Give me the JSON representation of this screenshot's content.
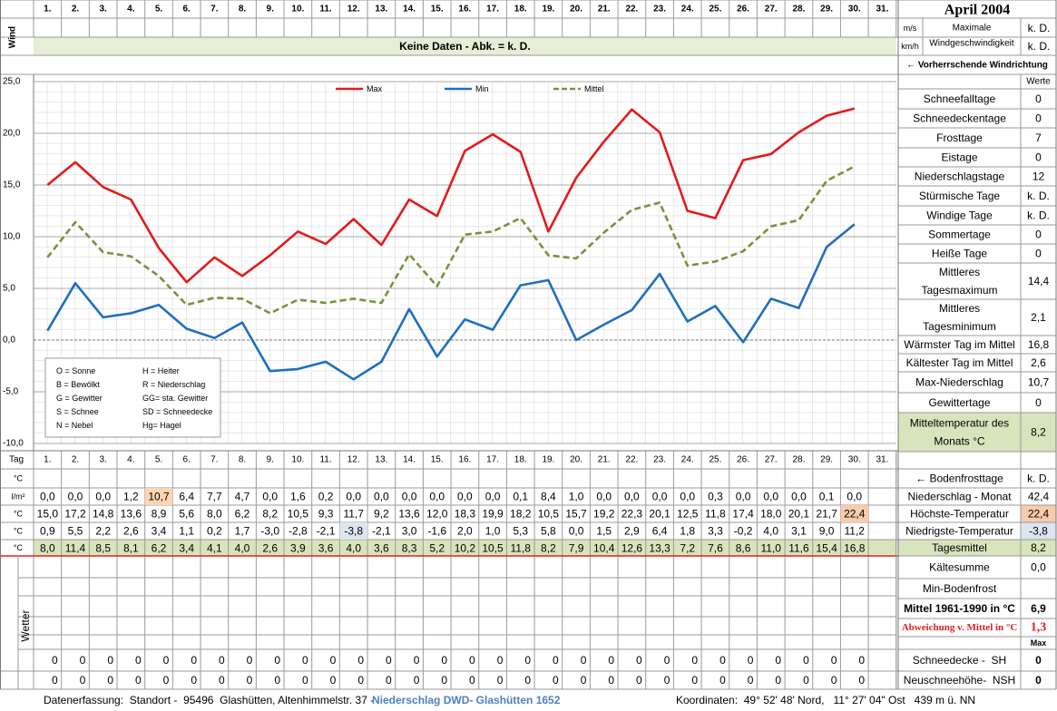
{
  "header": {
    "title": "April 2004"
  },
  "wind": {
    "label": "Wind",
    "units": [
      "m/s",
      "km/h"
    ],
    "caption": [
      "Maximale",
      "Windgeschwindigkeit"
    ],
    "values": [
      "k. D.",
      "k. D."
    ],
    "note": "Keine Daten - Abk. = k. D.",
    "direction": "← Vorherrschende Windrichtung"
  },
  "chart_data": {
    "type": "line",
    "ylim": [
      -10,
      25
    ],
    "yticks": [
      {
        "value": 25,
        "label": "25,0"
      },
      {
        "value": 20,
        "label": "20,0"
      },
      {
        "value": 15,
        "label": "15,0"
      },
      {
        "value": 10,
        "label": "10,0"
      },
      {
        "value": 5,
        "label": "5,0"
      },
      {
        "value": 0,
        "label": "0,0"
      },
      {
        "value": -5,
        "label": "-5,0"
      },
      {
        "value": -10,
        "label": "-10,0"
      }
    ],
    "grid": true,
    "series": [
      {
        "name": "Max",
        "color": "#e41a1c",
        "line_style": "solid",
        "values": [
          15.0,
          17.2,
          14.8,
          13.6,
          8.9,
          5.6,
          8.0,
          6.2,
          8.2,
          10.5,
          9.3,
          11.7,
          9.2,
          13.6,
          12.0,
          18.3,
          19.9,
          18.2,
          10.5,
          15.7,
          19.2,
          22.3,
          20.1,
          12.5,
          11.8,
          17.4,
          18.0,
          20.1,
          21.7,
          22.4
        ],
        "value_labels": [
          "15,0",
          "17,2",
          "14,8",
          "13,6",
          "8,9",
          "5,6",
          "8,0",
          "6,2",
          "8,2",
          "10,5",
          "9,3",
          "11,7",
          "9,2",
          "13,6",
          "12,0",
          "18,3",
          "19,9",
          "18,2",
          "10,5",
          "15,7",
          "19,2",
          "22,3",
          "20,1",
          "12,5",
          "11,8",
          "17,4",
          "18,0",
          "20,1",
          "21,7",
          "22,4"
        ]
      },
      {
        "name": "Min",
        "color": "#1f6fbe",
        "line_style": "solid",
        "values": [
          0.9,
          5.5,
          2.2,
          2.6,
          3.4,
          1.1,
          0.2,
          1.7,
          -3.0,
          -2.8,
          -2.1,
          -3.8,
          -2.1,
          3.0,
          -1.6,
          2.0,
          1.0,
          5.3,
          5.8,
          0.0,
          1.5,
          2.9,
          6.4,
          1.8,
          3.3,
          -0.2,
          4.0,
          3.1,
          9.0,
          11.2
        ],
        "value_labels": [
          "0,9",
          "5,5",
          "2,2",
          "2,6",
          "3,4",
          "1,1",
          "0,2",
          "1,7",
          "-3,0",
          "-2,8",
          "-2,1",
          "-3,8",
          "-2,1",
          "3,0",
          "-1,6",
          "2,0",
          "1,0",
          "5,3",
          "5,8",
          "0,0",
          "1,5",
          "2,9",
          "6,4",
          "1,8",
          "3,3",
          "-0,2",
          "4,0",
          "3,1",
          "9,0",
          "11,2"
        ]
      },
      {
        "name": "Mittel",
        "color": "#77933c",
        "line_style": "dashed",
        "values": [
          8.0,
          11.4,
          8.5,
          8.1,
          6.2,
          3.4,
          4.1,
          4.0,
          2.6,
          3.9,
          3.6,
          4.0,
          3.6,
          8.3,
          5.2,
          10.2,
          10.5,
          11.8,
          8.2,
          7.9,
          10.4,
          12.6,
          13.3,
          7.2,
          7.6,
          8.6,
          11.0,
          11.6,
          15.4,
          16.8
        ],
        "value_labels": [
          "8,0",
          "11,4",
          "8,5",
          "8,1",
          "6,2",
          "3,4",
          "4,1",
          "4,0",
          "2,6",
          "3,9",
          "3,6",
          "4,0",
          "3,6",
          "8,3",
          "5,2",
          "10,2",
          "10,5",
          "11,8",
          "8,2",
          "7,9",
          "10,4",
          "12,6",
          "13,3",
          "7,2",
          "7,6",
          "8,6",
          "11,0",
          "11,6",
          "15,4",
          "16,8"
        ]
      }
    ],
    "weather_legend": [
      "O = Sonne",
      "H = Heiter",
      "B = Bewölkt",
      "R = Niederschlag",
      "G = Gewitter",
      "GG= sta. Gewitter",
      "S = Schnee",
      "SD = Schneedecke",
      "N = Nebel",
      "Hg= Hagel"
    ]
  },
  "table": {
    "days": [
      "1.",
      "2.",
      "3.",
      "4.",
      "5.",
      "6.",
      "7.",
      "8.",
      "9.",
      "10.",
      "11.",
      "12.",
      "13.",
      "14.",
      "15.",
      "16.",
      "17.",
      "18.",
      "19.",
      "20.",
      "21.",
      "22.",
      "23.",
      "24.",
      "25.",
      "26.",
      "27.",
      "28.",
      "29.",
      "30.",
      "31."
    ],
    "row_label": "Tag",
    "units": [
      "°C",
      "l/m²",
      "°C",
      "°C",
      "°C"
    ],
    "precipitation": [
      "0,0",
      "0,0",
      "0,0",
      "1,2",
      "10,7",
      "6,4",
      "7,7",
      "4,7",
      "0,0",
      "1,6",
      "0,2",
      "0,0",
      "0,0",
      "0,0",
      "0,0",
      "0,0",
      "0,0",
      "0,1",
      "8,4",
      "1,0",
      "0,0",
      "0,0",
      "0,0",
      "0,0",
      "0,3",
      "0,0",
      "0,0",
      "0,0",
      "0,1",
      "0,0"
    ],
    "side": [
      {
        "label": "← Bodenfrosttage",
        "value": "k. D."
      },
      {
        "label": "Niederschlag - Monat",
        "value": "42,4"
      },
      {
        "label": "Höchste-Temperatur",
        "value": "22,4"
      },
      {
        "label": "Niedrigste-Temperatur",
        "value": "-3,8"
      },
      {
        "label": "Tagesmittel",
        "value": "8,2"
      }
    ]
  },
  "summary": {
    "header": "Werte",
    "rows": [
      {
        "label": "Schneefalltage",
        "value": "0"
      },
      {
        "label": "Schneedeckentage",
        "value": "0"
      },
      {
        "label": "Frosttage",
        "value": "7"
      },
      {
        "label": "Eistage",
        "value": "0"
      },
      {
        "label": "Niederschlagstage",
        "value": "12"
      },
      {
        "label": "Stürmische Tage",
        "value": "k. D."
      },
      {
        "label": "Windige Tage",
        "value": "k. D."
      },
      {
        "label": "Sommertage",
        "value": "0"
      },
      {
        "label": "Heiße Tage",
        "value": "0"
      },
      {
        "label": [
          "Mittleres",
          "Tagesmaximum"
        ],
        "value": "14,4"
      },
      {
        "label": [
          "Mittleres",
          "Tagesminimum"
        ],
        "value": "2,1"
      },
      {
        "label": "Wärmster Tag im Mittel",
        "value": "16,8"
      },
      {
        "label": "Kältester Tag im Mittel",
        "value": "2,6"
      },
      {
        "label": "Max-Niederschlag",
        "value": "10,7"
      },
      {
        "label": "Gewittertage",
        "value": "0"
      },
      {
        "label": [
          "Mitteltemperatur des",
          "Monats °C"
        ],
        "value": "8,2"
      }
    ]
  },
  "lower": {
    "wetter": "Wetter",
    "rows": [
      {
        "label": "Kältesumme",
        "value": "0,0"
      },
      {
        "label": "Min-Bodenfrost",
        "value": ""
      },
      {
        "label": "Mittel 1961-1990 in °C",
        "value": "6,9"
      },
      {
        "label": "Abweichung v. Mittel in °C",
        "value": "1,3"
      }
    ],
    "max_label": "Max",
    "snow": [
      {
        "label": "Schneedecke -  SH",
        "values": [
          0,
          0,
          0,
          0,
          0,
          0,
          0,
          0,
          0,
          0,
          0,
          0,
          0,
          0,
          0,
          0,
          0,
          0,
          0,
          0,
          0,
          0,
          0,
          0,
          0,
          0,
          0,
          0,
          0,
          0
        ],
        "max": 0
      },
      {
        "label": "Neuschneehöhe-  NSH",
        "values": [
          0,
          0,
          0,
          0,
          0,
          0,
          0,
          0,
          0,
          0,
          0,
          0,
          0,
          0,
          0,
          0,
          0,
          0,
          0,
          0,
          0,
          0,
          0,
          0,
          0,
          0,
          0,
          0,
          0,
          0
        ],
        "max": 0
      }
    ]
  },
  "footer": {
    "text": "Datenerfassung:  Standort -  95496  Glashütten, Altenhimmelstr. 37 -",
    "source": "Niederschlag DWD- Glashütten 1652",
    "coordinates": "Koordinaten:  49° 52' 48' Nord,   11° 27' 04\" Ost   439 m ü. NN"
  }
}
